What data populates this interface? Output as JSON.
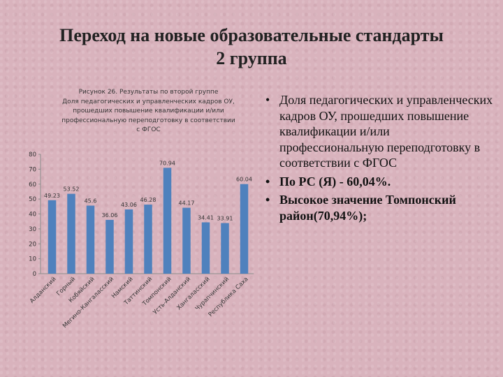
{
  "slide": {
    "title_line1": "Переход на новые образовательные стандарты",
    "title_line2": "2 группа"
  },
  "caption": {
    "line1": "Рисунок 26. Результаты по второй группе",
    "line2": "Доля педагогических и управленческих кадров ОУ,",
    "line3": "прошедших повышение квалификации и/или",
    "line4": "профессиональную переподготовку в соответствии",
    "line5": "с ФГОС"
  },
  "bullets": [
    {
      "marker": "•",
      "text": "Доля педагогических и управленческих кадров ОУ, прошедших повышение квалификации и/или профессиональную переподготовку в соответствии с ФГОС"
    },
    {
      "marker": "•",
      "text": "По РС (Я)  - 60,04%."
    },
    {
      "marker": "•",
      "text": "Высокое значение Томпонский район(70,94%);"
    }
  ],
  "colors": {
    "bar": "#4f81bd",
    "background": "#d9b3bd"
  },
  "chart_data": {
    "type": "bar",
    "categories": [
      "Алданский",
      "Горный",
      "Кобяйский",
      "Мегино-Кангаласский",
      "Намский",
      "Таттинский",
      "Томпонский",
      "Усть-Алданский",
      "Хангаласский",
      "Чурапчинский",
      "Республика Саха"
    ],
    "values": [
      49.23,
      53.52,
      45.6,
      36.06,
      43.06,
      46.28,
      70.94,
      44.17,
      34.41,
      33.91,
      60.04
    ],
    "value_labels": [
      "49.23",
      "53.52",
      "45.6",
      "36.06",
      "43.06",
      "46.28",
      "70.94",
      "44.17",
      "34.41",
      "33.91",
      "60.04"
    ],
    "y_ticks": [
      "0",
      "10",
      "20",
      "30",
      "40",
      "50",
      "60",
      "70",
      "80"
    ],
    "ylim": [
      0,
      80
    ],
    "grid": false,
    "legend": "none"
  }
}
